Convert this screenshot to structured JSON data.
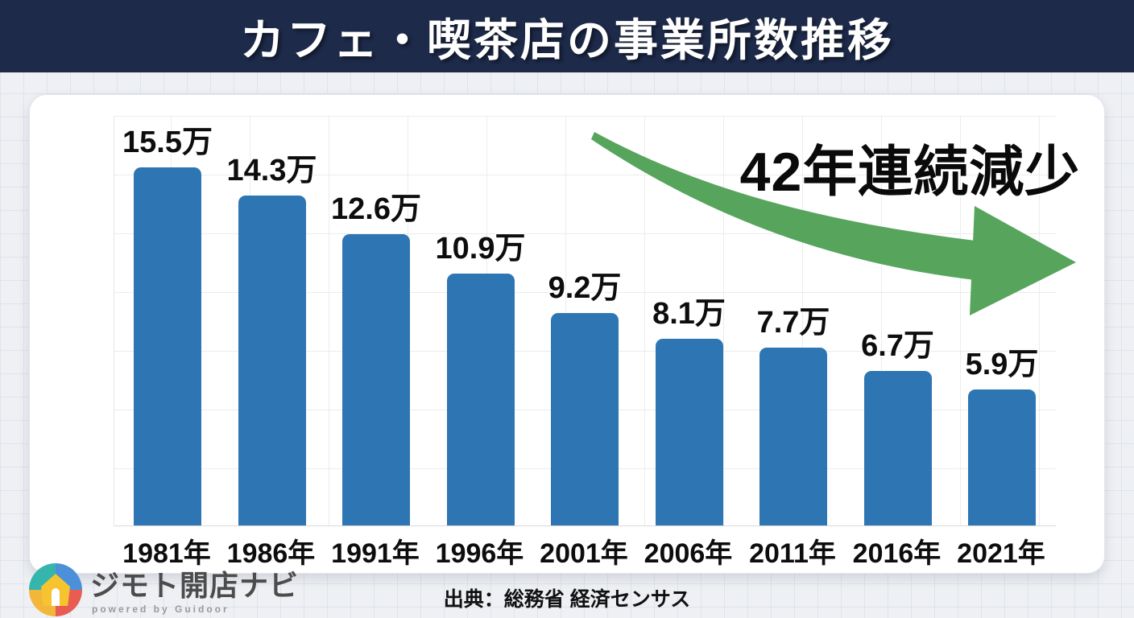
{
  "header": {
    "title": "カフェ・喫茶店の事業所数推移"
  },
  "chart_data": {
    "type": "bar",
    "title": "カフェ・喫茶店の事業所数推移",
    "categories": [
      "1981年",
      "1986年",
      "1991年",
      "1996年",
      "2001年",
      "2006年",
      "2011年",
      "2016年",
      "2021年"
    ],
    "values": [
      15.5,
      14.3,
      12.6,
      10.9,
      9.2,
      8.1,
      7.7,
      6.7,
      5.9
    ],
    "value_labels": [
      "15.5万",
      "14.3万",
      "12.6万",
      "10.9万",
      "9.2万",
      "8.1万",
      "7.7万",
      "6.7万",
      "5.9万"
    ],
    "unit": "万",
    "xlabel": "",
    "ylabel": "",
    "ylim": [
      0,
      16
    ],
    "grid": "on",
    "legend": "none",
    "annotation": "42年連続減少",
    "bar_color": "#2e76b3",
    "arrow_color": "#57a45d"
  },
  "colors": {
    "header_bg": "#1d2a4a",
    "header_text": "#ffffff",
    "page_bg": "#eef0f4",
    "grid_line": "#dee3ec",
    "card_bg": "#ffffff",
    "label_text": "#0d0d0d"
  },
  "footer": {
    "source": "出典：総務省 経済センサス"
  },
  "logo": {
    "name": "ジモト開店ナビ",
    "tagline": "powered by Guidoor"
  }
}
